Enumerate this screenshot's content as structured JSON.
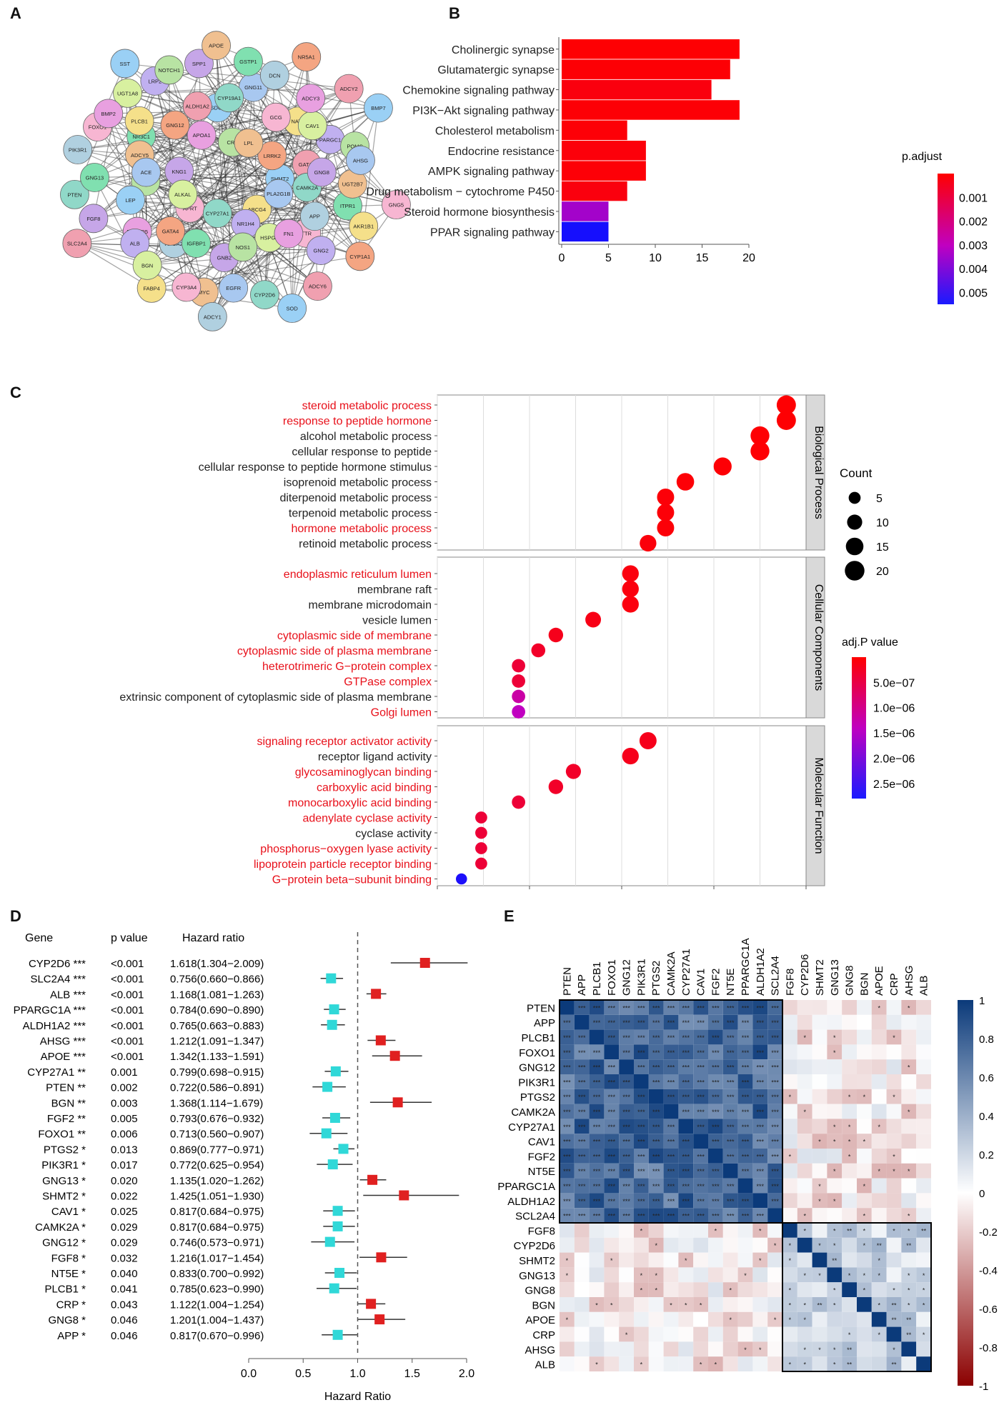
{
  "panels": {
    "a": "A",
    "b": "B",
    "c": "C",
    "d": "D",
    "e": "E"
  },
  "network": {
    "nodes": [
      "SHMT2",
      "APRT",
      "CRP",
      "ABCG4",
      "KNG1",
      "LRRK2",
      "CYP27A1",
      "APOA1",
      "PLA2G1B",
      "ALKAL",
      "LPL",
      "NR1H4",
      "NR3C1",
      "GATA3",
      "APOA2",
      "SDC1",
      "TTR",
      "PRKCA",
      "NAT2",
      "GNB2",
      "GNG12",
      "CAMK2A",
      "ENTPD5",
      "GNG11",
      "HSPG2",
      "ADCY5",
      "PPARGC1A",
      "IGFBP1",
      "ALDH1A2",
      "APP",
      "LEP",
      "GCG",
      "NOS1",
      "PLCB1",
      "GNG8",
      "GATA4",
      "CYP19A1",
      "FN1",
      "ACE",
      "CAV1",
      "MYC",
      "LRP2",
      "ITPR1",
      "SLC2A4",
      "DCN",
      "SOD",
      "FOXO1",
      "POMC",
      "FABP4",
      "SPP1",
      "CYP1A1",
      "PTEN",
      "ADCY3",
      "EGFR",
      "UGT1A8",
      "UGT2B7",
      "ALB",
      "GSTP1",
      "ADCY6",
      "PIK3R1",
      "BMP7",
      "CYP3A4",
      "NOTCH1",
      "AKR1B1",
      "FGF8",
      "NR5A1",
      "CYP2D6",
      "BMP2",
      "AHSG",
      "BGN",
      "APOE",
      "GNG2",
      "GNG13",
      "ADCY2",
      "ADCY1",
      "SST",
      "GNG5"
    ]
  },
  "chart_data": [
    {
      "id": "B",
      "type": "bar",
      "categories": [
        "Cholinergic synapse",
        "Glutamatergic synapse",
        "Chemokine signaling pathway",
        "PI3K−Akt signaling pathway",
        "Cholesterol metabolism",
        "Endocrine resistance",
        "AMPK signaling pathway",
        "Drug metabolism − cytochrome P450",
        "Steroid hormone biosynthesis",
        "PPAR signaling pathway"
      ],
      "values": [
        19,
        18,
        16,
        19,
        7,
        9,
        9,
        7,
        5,
        5
      ],
      "padjust": [
        5e-05,
        7e-05,
        0.0002,
        8e-05,
        0.0001,
        0.00015,
        0.0001,
        0.0002,
        0.0032,
        0.0054
      ],
      "xticks": [
        "0",
        "5",
        "10",
        "15",
        "20"
      ],
      "xlim": [
        0,
        20
      ],
      "legend_title": "p.adjust",
      "legend_ticks": [
        "0.001",
        "0.002",
        "0.003",
        "0.004",
        "0.005"
      ],
      "legend_range": [
        0,
        0.0055
      ]
    },
    {
      "id": "C",
      "type": "scatter",
      "xlim": [
        0.016,
        0.1
      ],
      "groups": [
        {
          "name": "Biological Process",
          "terms": [
            {
              "label": "steroid metabolic process",
              "x": 0.0955,
              "count": 19,
              "p": 2e-08,
              "red": true
            },
            {
              "label": "response to peptide hormone",
              "x": 0.0955,
              "count": 19,
              "p": 2e-08,
              "red": true
            },
            {
              "label": "alcohol metabolic process",
              "x": 0.0895,
              "count": 18,
              "p": 3e-08,
              "red": false
            },
            {
              "label": "cellular response to peptide",
              "x": 0.0895,
              "count": 18,
              "p": 3e-08,
              "red": false
            },
            {
              "label": "cellular response to peptide hormone stimulus",
              "x": 0.081,
              "count": 16,
              "p": 4e-08,
              "red": false
            },
            {
              "label": "isoprenoid metabolic process",
              "x": 0.0725,
              "count": 15,
              "p": 5e-08,
              "red": false
            },
            {
              "label": "diterpenoid metabolic process",
              "x": 0.068,
              "count": 14,
              "p": 6e-08,
              "red": false
            },
            {
              "label": "terpenoid metabolic process",
              "x": 0.068,
              "count": 14,
              "p": 6e-08,
              "red": false
            },
            {
              "label": "hormone metabolic process",
              "x": 0.068,
              "count": 14,
              "p": 6e-08,
              "red": true
            },
            {
              "label": "retinoid metabolic process",
              "x": 0.064,
              "count": 13,
              "p": 8e-08,
              "red": false
            }
          ]
        },
        {
          "name": "Cellular Components",
          "terms": [
            {
              "label": "endoplasmic reticulum lumen",
              "x": 0.06,
              "count": 13,
              "p": 1e-07,
              "red": true
            },
            {
              "label": "membrane raft",
              "x": 0.06,
              "count": 13,
              "p": 1e-07,
              "red": false
            },
            {
              "label": "membrane microdomain",
              "x": 0.06,
              "count": 13,
              "p": 1e-07,
              "red": false
            },
            {
              "label": "vesicle lumen",
              "x": 0.0515,
              "count": 11,
              "p": 1.5e-07,
              "red": false
            },
            {
              "label": "cytoplasmic side of membrane",
              "x": 0.043,
              "count": 9,
              "p": 2e-07,
              "red": true
            },
            {
              "label": "cytoplasmic side of plasma membrane",
              "x": 0.039,
              "count": 8,
              "p": 3e-07,
              "red": true
            },
            {
              "label": "heterotrimeric G−protein complex",
              "x": 0.0345,
              "count": 7,
              "p": 4e-07,
              "red": true
            },
            {
              "label": "GTPase complex",
              "x": 0.0345,
              "count": 7,
              "p": 4e-07,
              "red": true
            },
            {
              "label": "extrinsic component of cytoplasmic side of plasma membrane",
              "x": 0.0345,
              "count": 7,
              "p": 1.2e-06,
              "red": false
            },
            {
              "label": "Golgi lumen",
              "x": 0.0345,
              "count": 7,
              "p": 1.4e-06,
              "red": true
            }
          ]
        },
        {
          "name": "Molecular Function",
          "terms": [
            {
              "label": "signaling receptor activator activity",
              "x": 0.064,
              "count": 14,
              "p": 2e-07,
              "red": true
            },
            {
              "label": "receptor ligand activity",
              "x": 0.06,
              "count": 13,
              "p": 2e-07,
              "red": false
            },
            {
              "label": "glycosaminoglycan binding",
              "x": 0.047,
              "count": 10,
              "p": 3e-07,
              "red": true
            },
            {
              "label": "carboxylic acid binding",
              "x": 0.043,
              "count": 9,
              "p": 3e-07,
              "red": true
            },
            {
              "label": "monocarboxylic acid binding",
              "x": 0.0345,
              "count": 7,
              "p": 4e-07,
              "red": true
            },
            {
              "label": "adenylate cyclase activity",
              "x": 0.026,
              "count": 5,
              "p": 4e-07,
              "red": true
            },
            {
              "label": "cyclase activity",
              "x": 0.026,
              "count": 5,
              "p": 4e-07,
              "red": false
            },
            {
              "label": "phosphorus−oxygen lyase activity",
              "x": 0.026,
              "count": 5,
              "p": 4e-07,
              "red": true
            },
            {
              "label": "lipoprotein particle receptor binding",
              "x": 0.026,
              "count": 5,
              "p": 4e-07,
              "red": true
            },
            {
              "label": "G−protein beta−subunit binding",
              "x": 0.0215,
              "count": 4,
              "p": 2.7e-06,
              "red": true
            }
          ]
        }
      ],
      "count_legend_title": "Count",
      "count_legend": [
        5,
        10,
        15,
        20
      ],
      "p_legend_title": "adj.P value",
      "p_legend_ticks": [
        "5.0e−07",
        "1.0e−06",
        "1.5e−06",
        "2.0e−06",
        "2.5e−06"
      ],
      "p_range": [
        0,
        2.8e-06
      ]
    },
    {
      "id": "D",
      "type": "forest",
      "headers": {
        "gene": "Gene",
        "p": "p value",
        "hr": "Hazard ratio"
      },
      "xlabel": "Hazard Ratio",
      "xticks": [
        "0.0",
        "0.5",
        "1.0",
        "1.5",
        "2.0"
      ],
      "xlim": [
        0,
        2.0
      ],
      "rows": [
        {
          "gene": "CYP2D6",
          "stars": "***",
          "p": "<0.001",
          "hr_text": "1.618(1.304−2.009)",
          "hr": 1.618,
          "lo": 1.304,
          "hi": 2.009
        },
        {
          "gene": "SLC2A4",
          "stars": "***",
          "p": "<0.001",
          "hr_text": "0.756(0.660−0.866)",
          "hr": 0.756,
          "lo": 0.66,
          "hi": 0.866
        },
        {
          "gene": "ALB",
          "stars": "***",
          "p": "<0.001",
          "hr_text": "1.168(1.081−1.263)",
          "hr": 1.168,
          "lo": 1.081,
          "hi": 1.263
        },
        {
          "gene": "PPARGC1A",
          "stars": "***",
          "p": "<0.001",
          "hr_text": "0.784(0.690−0.890)",
          "hr": 0.784,
          "lo": 0.69,
          "hi": 0.89
        },
        {
          "gene": "ALDH1A2",
          "stars": "***",
          "p": "<0.001",
          "hr_text": "0.765(0.663−0.883)",
          "hr": 0.765,
          "lo": 0.663,
          "hi": 0.883
        },
        {
          "gene": "AHSG",
          "stars": "***",
          "p": "<0.001",
          "hr_text": "1.212(1.091−1.347)",
          "hr": 1.212,
          "lo": 1.091,
          "hi": 1.347
        },
        {
          "gene": "APOE",
          "stars": "***",
          "p": "<0.001",
          "hr_text": "1.342(1.133−1.591)",
          "hr": 1.342,
          "lo": 1.133,
          "hi": 1.591
        },
        {
          "gene": "CYP27A1",
          "stars": "**",
          "p": "0.001",
          "hr_text": "0.799(0.698−0.915)",
          "hr": 0.799,
          "lo": 0.698,
          "hi": 0.915
        },
        {
          "gene": "PTEN",
          "stars": "**",
          "p": "0.002",
          "hr_text": "0.722(0.586−0.891)",
          "hr": 0.722,
          "lo": 0.586,
          "hi": 0.891
        },
        {
          "gene": "BGN",
          "stars": "**",
          "p": "0.003",
          "hr_text": "1.368(1.114−1.679)",
          "hr": 1.368,
          "lo": 1.114,
          "hi": 1.679
        },
        {
          "gene": "FGF2",
          "stars": "**",
          "p": "0.005",
          "hr_text": "0.793(0.676−0.932)",
          "hr": 0.793,
          "lo": 0.676,
          "hi": 0.932
        },
        {
          "gene": "FOXO1",
          "stars": "**",
          "p": "0.006",
          "hr_text": "0.713(0.560−0.907)",
          "hr": 0.713,
          "lo": 0.56,
          "hi": 0.907
        },
        {
          "gene": "PTGS2",
          "stars": "*",
          "p": "0.013",
          "hr_text": "0.869(0.777−0.971)",
          "hr": 0.869,
          "lo": 0.777,
          "hi": 0.971
        },
        {
          "gene": "PIK3R1",
          "stars": "*",
          "p": "0.017",
          "hr_text": "0.772(0.625−0.954)",
          "hr": 0.772,
          "lo": 0.625,
          "hi": 0.954
        },
        {
          "gene": "GNG13",
          "stars": "*",
          "p": "0.020",
          "hr_text": "1.135(1.020−1.262)",
          "hr": 1.135,
          "lo": 1.02,
          "hi": 1.262
        },
        {
          "gene": "SHMT2",
          "stars": "*",
          "p": "0.022",
          "hr_text": "1.425(1.051−1.930)",
          "hr": 1.425,
          "lo": 1.051,
          "hi": 1.93
        },
        {
          "gene": "CAV1",
          "stars": "*",
          "p": "0.025",
          "hr_text": "0.817(0.684−0.975)",
          "hr": 0.817,
          "lo": 0.684,
          "hi": 0.975
        },
        {
          "gene": "CAMK2A",
          "stars": "*",
          "p": "0.029",
          "hr_text": "0.817(0.684−0.975)",
          "hr": 0.817,
          "lo": 0.684,
          "hi": 0.975
        },
        {
          "gene": "GNG12",
          "stars": "*",
          "p": "0.029",
          "hr_text": "0.746(0.573−0.971)",
          "hr": 0.746,
          "lo": 0.573,
          "hi": 0.971
        },
        {
          "gene": "FGF8",
          "stars": "*",
          "p": "0.032",
          "hr_text": "1.216(1.017−1.454)",
          "hr": 1.216,
          "lo": 1.017,
          "hi": 1.454
        },
        {
          "gene": "NT5E",
          "stars": "*",
          "p": "0.040",
          "hr_text": "0.833(0.700−0.992)",
          "hr": 0.833,
          "lo": 0.7,
          "hi": 0.992
        },
        {
          "gene": "PLCB1",
          "stars": "*",
          "p": "0.041",
          "hr_text": "0.785(0.623−0.990)",
          "hr": 0.785,
          "lo": 0.623,
          "hi": 0.99
        },
        {
          "gene": "CRP",
          "stars": "*",
          "p": "0.043",
          "hr_text": "1.122(1.004−1.254)",
          "hr": 1.122,
          "lo": 1.004,
          "hi": 1.254
        },
        {
          "gene": "GNG8",
          "stars": "*",
          "p": "0.046",
          "hr_text": "1.201(1.004−1.437)",
          "hr": 1.201,
          "lo": 1.004,
          "hi": 1.437
        },
        {
          "gene": "APP",
          "stars": "*",
          "p": "0.046",
          "hr_text": "0.817(0.670−0.996)",
          "hr": 0.817,
          "lo": 0.67,
          "hi": 0.996
        }
      ]
    },
    {
      "id": "E",
      "type": "heatmap",
      "genes": [
        "PTEN",
        "APP",
        "PLCB1",
        "FOXO1",
        "GNG12",
        "PIK3R1",
        "PTGS2",
        "CAMK2A",
        "CYP27A1",
        "CAV1",
        "FGF2",
        "NT5E",
        "PPARGC1A",
        "ALDH1A2",
        "SCL2A4",
        "FGF8",
        "CYP2D6",
        "SHMT2",
        "GNG13",
        "GNG8",
        "BGN",
        "APOE",
        "CRP",
        "AHSG",
        "ALB"
      ],
      "cluster_sizes": [
        15,
        10
      ],
      "legend_ticks": [
        "1",
        "0.8",
        "0.6",
        "0.4",
        "0.2",
        "0",
        "-0.2",
        "-0.4",
        "-0.6",
        "-0.8",
        "-1"
      ],
      "range": [
        -1,
        1
      ]
    }
  ]
}
